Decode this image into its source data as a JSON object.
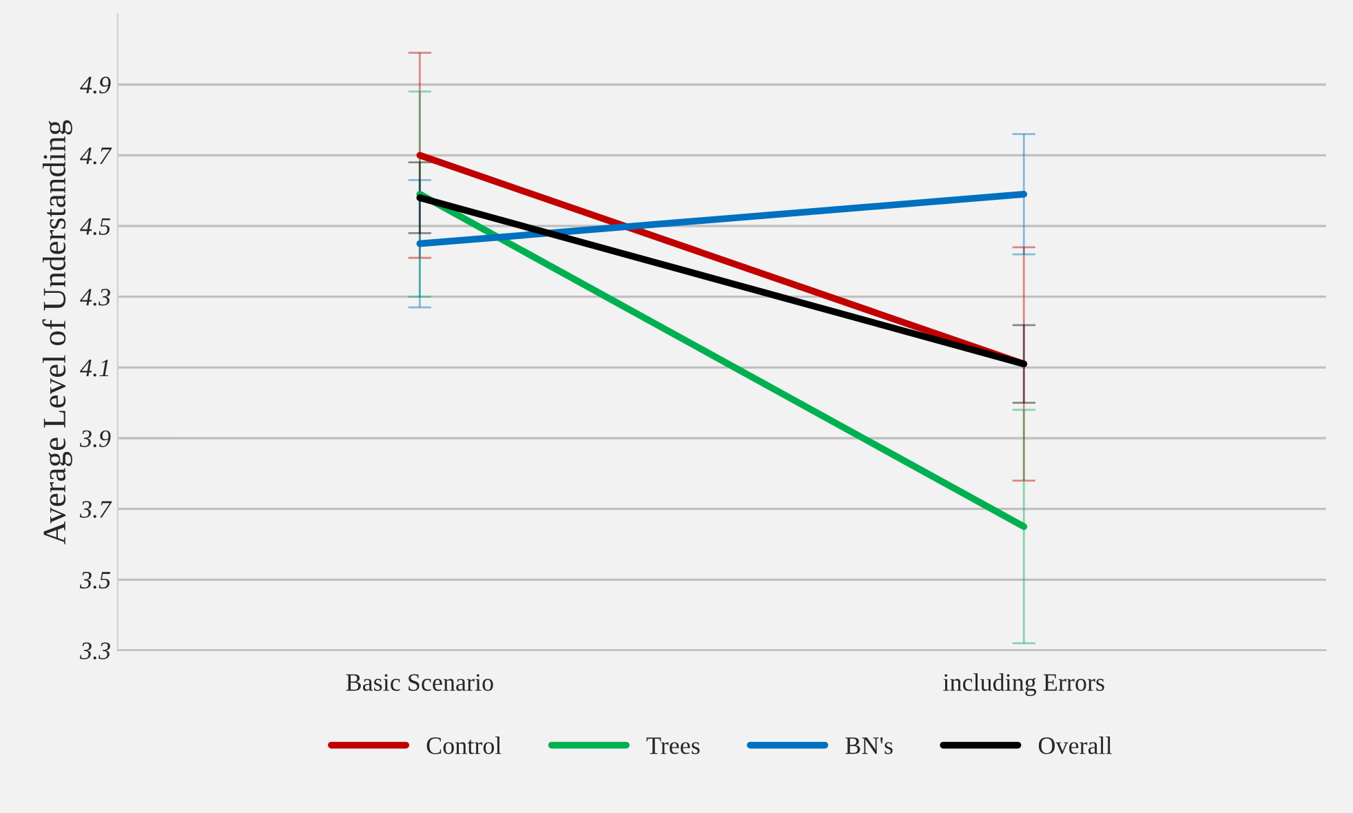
{
  "chart_data": {
    "type": "line",
    "ylabel": "Average Level of Understanding",
    "categories": [
      "Basic Scenario",
      "including Errors"
    ],
    "series": [
      {
        "name": "Control",
        "color": "#c00000",
        "values": [
          4.7,
          4.11
        ],
        "errors": [
          0.29,
          0.33
        ]
      },
      {
        "name": "Trees",
        "color": "#00b050",
        "values": [
          4.59,
          3.65
        ],
        "errors": [
          0.29,
          0.33
        ]
      },
      {
        "name": "BN's",
        "color": "#0070c0",
        "values": [
          4.45,
          4.59
        ],
        "errors": [
          0.18,
          0.17
        ]
      },
      {
        "name": "Overall",
        "color": "#000000",
        "values": [
          4.58,
          4.11
        ],
        "errors": [
          0.1,
          0.11
        ]
      }
    ],
    "ylim": [
      3.3,
      5.1
    ],
    "yticks": [
      3.3,
      3.5,
      3.7,
      3.9,
      4.1,
      4.3,
      4.5,
      4.7,
      4.9
    ],
    "grid": "y",
    "legend": "bottom",
    "marker": "none",
    "line_style": "solid"
  }
}
